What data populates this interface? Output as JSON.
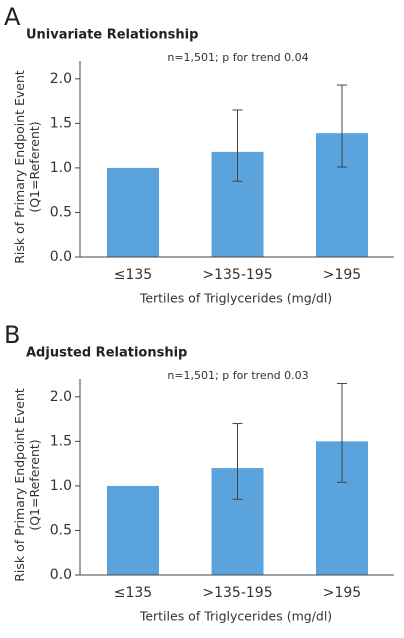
{
  "chart_data": [
    {
      "type": "bar",
      "panel": "A",
      "title": "Univariate Relationship",
      "annotation": "n=1,501; p for trend 0.04",
      "categories": [
        "≤135",
        ">135-195",
        ">195"
      ],
      "values": [
        1.0,
        1.18,
        1.39
      ],
      "error_low": [
        null,
        0.85,
        1.01
      ],
      "error_high": [
        null,
        1.65,
        1.93
      ],
      "color": "#5ba3dc",
      "x_label": "Tertiles of Triglycerides (mg/dl)",
      "y_label": "Risk of Primary Endpoint Event|(Q1=Referent)",
      "ylim": [
        0,
        2.2
      ],
      "yticks": [
        {
          "value": 0,
          "label": "0.0"
        },
        0.5,
        {
          "value": 1,
          "label": "1.0"
        },
        1.5,
        {
          "value": 2,
          "label": "2.0"
        }
      ]
    },
    {
      "type": "bar",
      "panel": "B",
      "title": "Adjusted Relationship",
      "annotation": "n=1,501; p for trend 0.03",
      "categories": [
        "≤135",
        ">135-195",
        ">195"
      ],
      "values": [
        1.0,
        1.2,
        1.5
      ],
      "error_low": [
        null,
        0.85,
        1.04
      ],
      "error_high": [
        null,
        1.7,
        2.15
      ],
      "color": "#5ba3dc",
      "x_label": "Tertiles of Triglycerides (mg/dl)",
      "y_label": "Risk of Primary Endpoint Event|(Q1=Referent)",
      "ylim": [
        0,
        2.2
      ],
      "yticks": [
        {
          "value": 0,
          "label": "0.0"
        },
        0.5,
        {
          "value": 1,
          "label": "1.0"
        },
        1.5,
        {
          "value": 2,
          "label": "2.0"
        }
      ]
    }
  ]
}
